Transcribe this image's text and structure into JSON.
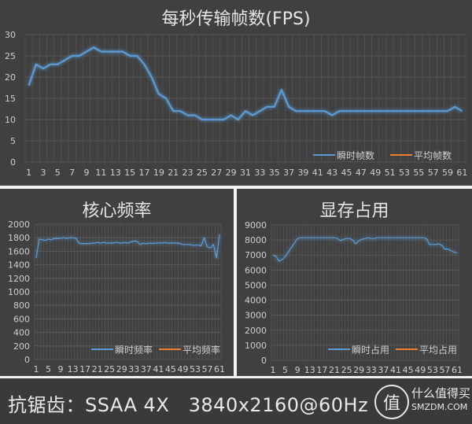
{
  "chart_data": [
    {
      "type": "line",
      "title": "每秒传输帧数(FPS)",
      "xlabel": "",
      "ylabel": "",
      "ylim": [
        0,
        30
      ],
      "yticks": [
        0,
        5,
        10,
        15,
        20,
        25,
        30
      ],
      "x": [
        1,
        2,
        3,
        4,
        5,
        6,
        7,
        8,
        9,
        10,
        11,
        12,
        13,
        14,
        15,
        16,
        17,
        18,
        19,
        20,
        21,
        22,
        23,
        24,
        25,
        26,
        27,
        28,
        29,
        30,
        31,
        32,
        33,
        34,
        35,
        36,
        37,
        38,
        39,
        40,
        41,
        42,
        43,
        44,
        45,
        46,
        47,
        48,
        49,
        50,
        51,
        52,
        53,
        54,
        55,
        56,
        57,
        58,
        59,
        60,
        61
      ],
      "xtick_labels": [
        "1",
        "3",
        "5",
        "7",
        "9",
        "11",
        "13",
        "15",
        "17",
        "19",
        "21",
        "23",
        "25",
        "27",
        "29",
        "31",
        "33",
        "35",
        "37",
        "39",
        "41",
        "43",
        "45",
        "47",
        "49",
        "51",
        "53",
        "55",
        "57",
        "59",
        "61"
      ],
      "grid": true,
      "legend_position": "bottom-right",
      "series": [
        {
          "name": "瞬时帧数",
          "color": "#5b9bd5",
          "values": [
            18,
            23,
            22,
            23,
            23,
            24,
            25,
            25,
            26,
            27,
            26,
            26,
            26,
            26,
            25,
            25,
            23,
            20,
            16,
            15,
            12,
            12,
            11,
            11,
            10,
            10,
            10,
            10,
            11,
            10,
            12,
            11,
            12,
            13,
            13,
            17,
            13,
            12,
            12,
            12,
            12,
            12,
            11,
            12,
            12,
            12,
            12,
            12,
            12,
            12,
            12,
            12,
            12,
            12,
            12,
            12,
            12,
            12,
            12,
            13,
            12
          ]
        },
        {
          "name": "平均帧数",
          "color": "#ed7d31",
          "values_constant": 15.5
        }
      ]
    },
    {
      "type": "line",
      "title": "核心频率",
      "ylim": [
        0,
        2000
      ],
      "yticks": [
        0,
        200,
        400,
        600,
        800,
        1000,
        1200,
        1400,
        1600,
        1800,
        2000
      ],
      "xtick_labels": [
        "1",
        "5",
        "9",
        "13",
        "17",
        "21",
        "25",
        "29",
        "33",
        "37",
        "41",
        "45",
        "49",
        "53",
        "57",
        "61"
      ],
      "grid": true,
      "legend_position": "bottom-right",
      "series": [
        {
          "name": "瞬时频率",
          "color": "#5b9bd5",
          "values": [
            1500,
            1780,
            1770,
            1760,
            1780,
            1770,
            1790,
            1790,
            1790,
            1800,
            1790,
            1800,
            1800,
            1790,
            1720,
            1710,
            1715,
            1710,
            1720,
            1720,
            1730,
            1720,
            1730,
            1720,
            1725,
            1720,
            1730,
            1725,
            1720,
            1730,
            1720,
            1740,
            1750,
            1745,
            1700,
            1720,
            1710,
            1720,
            1715,
            1720,
            1725,
            1720,
            1730,
            1720,
            1720,
            1725,
            1720,
            1715,
            1700,
            1700,
            1700,
            1690,
            1690,
            1690,
            1680,
            1800,
            1660,
            1650,
            1700,
            1500,
            1850
          ]
        },
        {
          "name": "平均频率",
          "color": "#ed7d31",
          "values_constant": 1725
        }
      ]
    },
    {
      "type": "line",
      "title": "显存占用",
      "ylim": [
        0,
        9000
      ],
      "yticks": [
        0,
        1000,
        2000,
        3000,
        4000,
        5000,
        6000,
        7000,
        8000,
        9000
      ],
      "xtick_labels": [
        "1",
        "5",
        "9",
        "13",
        "17",
        "21",
        "25",
        "29",
        "33",
        "37",
        "41",
        "45",
        "49",
        "53",
        "57",
        "61"
      ],
      "grid": true,
      "legend_position": "bottom-right",
      "series": [
        {
          "name": "瞬时占用",
          "color": "#5b9bd5",
          "values": [
            7000,
            6900,
            6600,
            6700,
            6900,
            7200,
            7500,
            7800,
            8100,
            8150,
            8150,
            8150,
            8150,
            8150,
            8150,
            8150,
            8150,
            8150,
            8150,
            8150,
            8150,
            8100,
            7950,
            8050,
            8100,
            8100,
            8000,
            7750,
            7950,
            8050,
            8100,
            8150,
            8100,
            8100,
            8150,
            8150,
            8150,
            8150,
            8150,
            8150,
            8150,
            8150,
            8150,
            8150,
            8150,
            8150,
            8150,
            8150,
            8150,
            8150,
            8100,
            7700,
            7700,
            7700,
            7750,
            7650,
            7400,
            7400,
            7300,
            7200,
            7150
          ]
        },
        {
          "name": "平均占用",
          "color": "#ed7d31",
          "values_constant": 7850
        }
      ]
    }
  ],
  "footer": {
    "text": "抗锯齿：SSAA 4X   3840x2160@60Hz",
    "logo_glyph": "值",
    "logo_cn": "什么值得买",
    "logo_en": "SMZDM.COM"
  }
}
